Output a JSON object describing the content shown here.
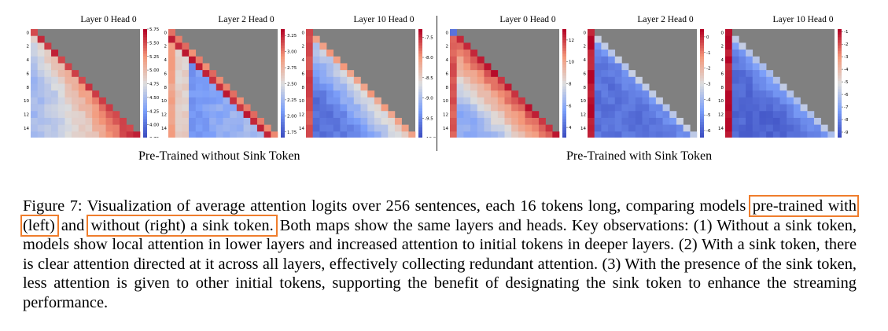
{
  "groups": [
    {
      "caption": "Pre-Trained without Sink Token",
      "panels": [
        {
          "title": "Layer 0 Head 0",
          "variant": "no-sink-l0",
          "colorbar": {
            "min": 3.75,
            "max": 5.75,
            "ticks": [
              "5.75",
              "5.50",
              "5.25",
              "5.00",
              "4.75",
              "4.50",
              "4.25",
              "4.00",
              "3.75"
            ]
          }
        },
        {
          "title": "Layer 2 Head 0",
          "variant": "no-sink-l2",
          "colorbar": {
            "min": 1.65,
            "max": 3.35,
            "ticks": [
              "3.25",
              "3.00",
              "2.75",
              "2.50",
              "2.25",
              "2.00",
              "1.75"
            ]
          }
        },
        {
          "title": "Layer 10 Head 0",
          "variant": "no-sink-l10",
          "colorbar": {
            "min": -10.0,
            "max": -7.3,
            "ticks": [
              "-7.5",
              "-8.0",
              "-8.5",
              "-9.0",
              "-9.5",
              "-10.0"
            ]
          }
        }
      ]
    },
    {
      "caption": "Pre-Trained with Sink Token",
      "panels": [
        {
          "title": "Layer 0 Head 0",
          "variant": "sink-l0",
          "colorbar": {
            "min": 3,
            "max": 13,
            "ticks": [
              "12",
              "10",
              "8",
              "6",
              "4"
            ]
          }
        },
        {
          "title": "Layer 2 Head 0",
          "variant": "sink-l2",
          "colorbar": {
            "min": -6.5,
            "max": 0.5,
            "ticks": [
              "0",
              "-1",
              "-2",
              "-3",
              "-4",
              "-5",
              "-6"
            ]
          }
        },
        {
          "title": "Layer 10 Head 0",
          "variant": "sink-l10",
          "colorbar": {
            "min": -9.5,
            "max": -0.8,
            "ticks": [
              "-1",
              "-2",
              "-3",
              "-4",
              "-5",
              "-6",
              "-7",
              "-8",
              "-9"
            ]
          }
        }
      ]
    }
  ],
  "axis_ticks": [
    "0",
    "2",
    "4",
    "6",
    "8",
    "10",
    "12",
    "14"
  ],
  "caption": {
    "label": "Figure 7:",
    "lead": "Visualization of average attention logits over 256 sentences, each 16 tokens long, comparing models",
    "highlight_left": "pre-trained with (left)",
    "and_word": "and",
    "highlight_right": "without (right) a sink token.",
    "rest": "Both maps show the same layers and heads. Key observations: (1) Without a sink token, models show local attention in lower layers and increased attention to initial tokens in deeper layers. (2) With a sink token, there is clear attention directed at it across all layers, effectively collecting redundant attention. (3) With the presence of the sink token, less attention is given to other initial tokens, supporting the benefit of designating the sink token to enhance the streaming performance."
  },
  "colors": {
    "masked": "#808080",
    "highlight_box": "#ef7d2c",
    "cmap_low": "#3b4cc0",
    "cmap_mid": "#dddddd",
    "cmap_high": "#b40426"
  }
}
